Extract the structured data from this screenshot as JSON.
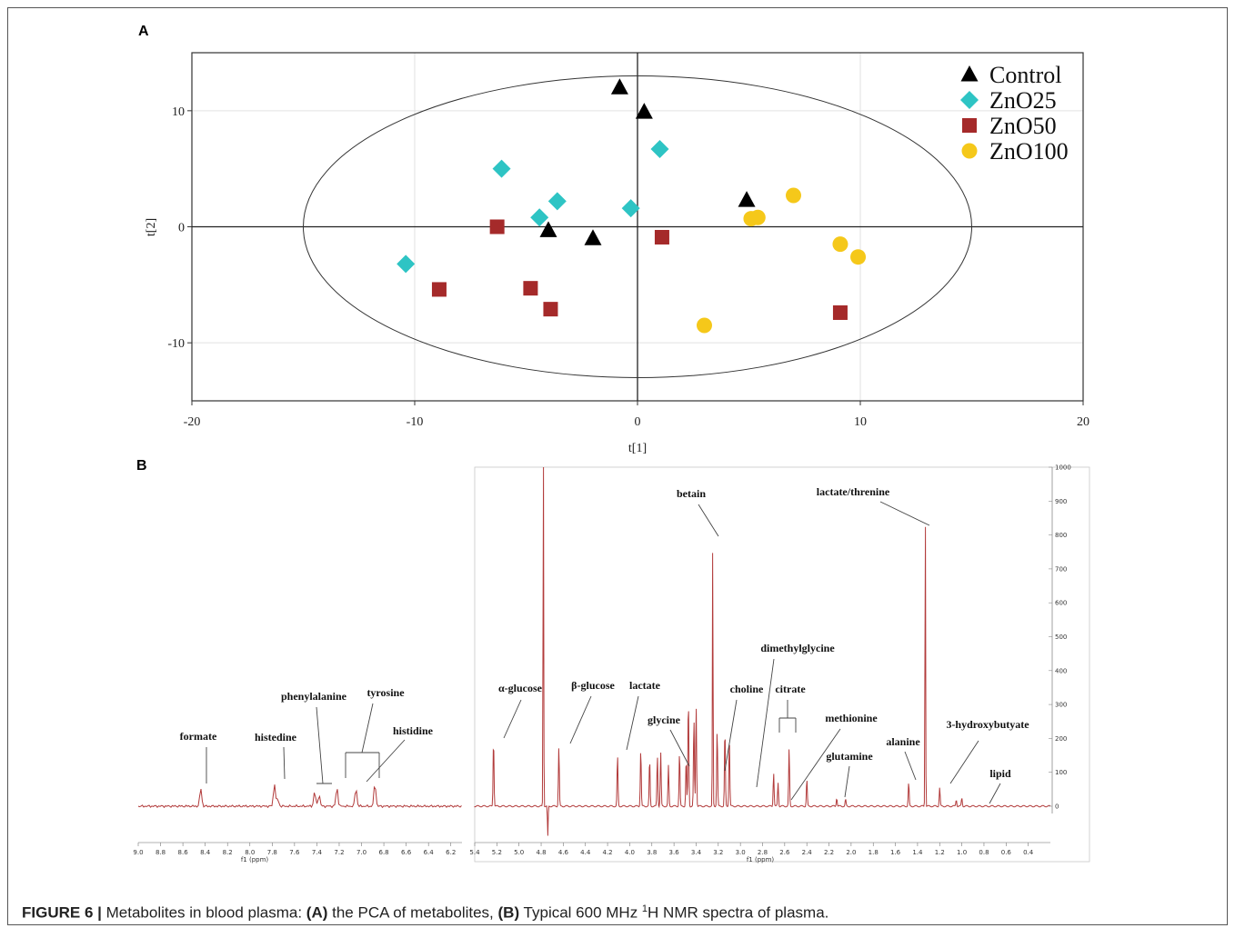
{
  "panels": {
    "a_label": "A",
    "b_label": "B"
  },
  "caption": {
    "figure": "FIGURE 6 |",
    "text1": " Metabolites in blood plasma: ",
    "a": "(A)",
    "text2": " the PCA of metabolites, ",
    "b": "(B)",
    "text3": " Typical 600 MHz ",
    "sup": "1",
    "text4": "H NMR spectra of plasma."
  },
  "chart_data": [
    {
      "type": "scatter",
      "xlabel": "t[1]",
      "ylabel": "t[2]",
      "xlim": [
        -20,
        20
      ],
      "ylim": [
        -15,
        15
      ],
      "xticks": [
        "-20",
        "-10",
        "0",
        "10",
        "20"
      ],
      "yticks": [
        "10",
        "0",
        "-10"
      ],
      "grid": true,
      "legend_position": "top-right",
      "ellipse": {
        "rx": 15,
        "ry": 13
      },
      "series": [
        {
          "name": "Control",
          "marker": "triangle",
          "color": "#000000",
          "points": [
            [
              -0.8,
              12.0
            ],
            [
              0.3,
              9.9
            ],
            [
              4.9,
              2.3
            ],
            [
              -4.0,
              -0.3
            ],
            [
              -2.0,
              -1.0
            ]
          ]
        },
        {
          "name": "ZnO25",
          "marker": "diamond",
          "color": "#2ec4c4",
          "points": [
            [
              -6.1,
              5.0
            ],
            [
              1.0,
              6.7
            ],
            [
              -3.6,
              2.2
            ],
            [
              -4.4,
              0.8
            ],
            [
              -0.3,
              1.6
            ],
            [
              -10.4,
              -3.2
            ]
          ]
        },
        {
          "name": "ZnO50",
          "marker": "square",
          "color": "#a52a2a",
          "points": [
            [
              -6.3,
              0.0
            ],
            [
              1.1,
              -0.9
            ],
            [
              -8.9,
              -5.4
            ],
            [
              -4.8,
              -5.3
            ],
            [
              -3.9,
              -7.1
            ],
            [
              9.1,
              -7.4
            ]
          ]
        },
        {
          "name": "ZnO100",
          "marker": "circle",
          "color": "#f5c81a",
          "points": [
            [
              7.0,
              2.7
            ],
            [
              5.1,
              0.7
            ],
            [
              5.4,
              0.8
            ],
            [
              9.1,
              -1.5
            ],
            [
              9.9,
              -2.6
            ],
            [
              3.0,
              -8.5
            ]
          ]
        }
      ]
    },
    {
      "type": "line",
      "segments": [
        {
          "xlim": [
            9.0,
            6.1
          ],
          "xticks": [
            "9.0",
            "8.8",
            "8.6",
            "8.4",
            "8.2",
            "8.0",
            "7.8",
            "7.6",
            "7.4",
            "7.2",
            "7.0",
            "6.8",
            "6.6",
            "6.4",
            "6.2"
          ],
          "xlabel": "f1 (ppm)",
          "peaks": [
            [
              8.44,
              2.5
            ],
            [
              7.78,
              3.2
            ],
            [
              7.75,
              1.0
            ],
            [
              7.42,
              2.0
            ],
            [
              7.38,
              1.6
            ],
            [
              7.22,
              2.6
            ],
            [
              7.05,
              2.5
            ],
            [
              6.88,
              3.2
            ]
          ]
        },
        {
          "xlim": [
            5.4,
            0.2
          ],
          "xticks": [
            "5.4",
            "5.2",
            "5.0",
            "4.8",
            "4.6",
            "4.4",
            "4.2",
            "4.0",
            "3.8",
            "3.6",
            "3.4",
            "3.2",
            "3.0",
            "2.8",
            "2.6",
            "2.4",
            "2.2",
            "2.0",
            "1.8",
            "1.6",
            "1.4",
            "1.2",
            "1.0",
            "0.8",
            "0.6",
            "0.4"
          ],
          "xlabel": "f1 (ppm)",
          "yticks": [
            "1000",
            "900",
            "800",
            "700",
            "600",
            "500",
            "400",
            "300",
            "200",
            "100",
            "0"
          ],
          "peaks": [
            [
              5.23,
              200
            ],
            [
              4.78,
              1100
            ],
            [
              4.64,
              175
            ],
            [
              4.11,
              150
            ],
            [
              3.9,
              170
            ],
            [
              3.82,
              140
            ],
            [
              3.75,
              150
            ],
            [
              3.72,
              160
            ],
            [
              3.65,
              120
            ],
            [
              3.55,
              160
            ],
            [
              3.49,
              140
            ],
            [
              3.47,
              320
            ],
            [
              3.42,
              260
            ],
            [
              3.4,
              300
            ],
            [
              3.25,
              790
            ],
            [
              3.21,
              230
            ],
            [
              3.14,
              230
            ],
            [
              3.1,
              200
            ],
            [
              2.7,
              100
            ],
            [
              2.66,
              70
            ],
            [
              2.56,
              170
            ],
            [
              2.4,
              80
            ],
            [
              2.13,
              25
            ],
            [
              2.05,
              20
            ],
            [
              1.48,
              70
            ],
            [
              1.33,
              910
            ],
            [
              1.2,
              55
            ],
            [
              1.05,
              20
            ],
            [
              1.0,
              25
            ]
          ],
          "solvent_dip": [
            4.74,
            -90
          ]
        }
      ],
      "annotations": [
        "formate",
        "histedine",
        "phenylalanine",
        "tyrosine",
        "histidine",
        "α-glucose",
        "β-glucose",
        "lactate",
        "glycine",
        "betain",
        "choline",
        "dimethylglycine",
        "citrate",
        "methionine",
        "glutamine",
        "alanine",
        "lactate/threnine",
        "3-hydroxybutyate",
        "lipid"
      ]
    }
  ]
}
